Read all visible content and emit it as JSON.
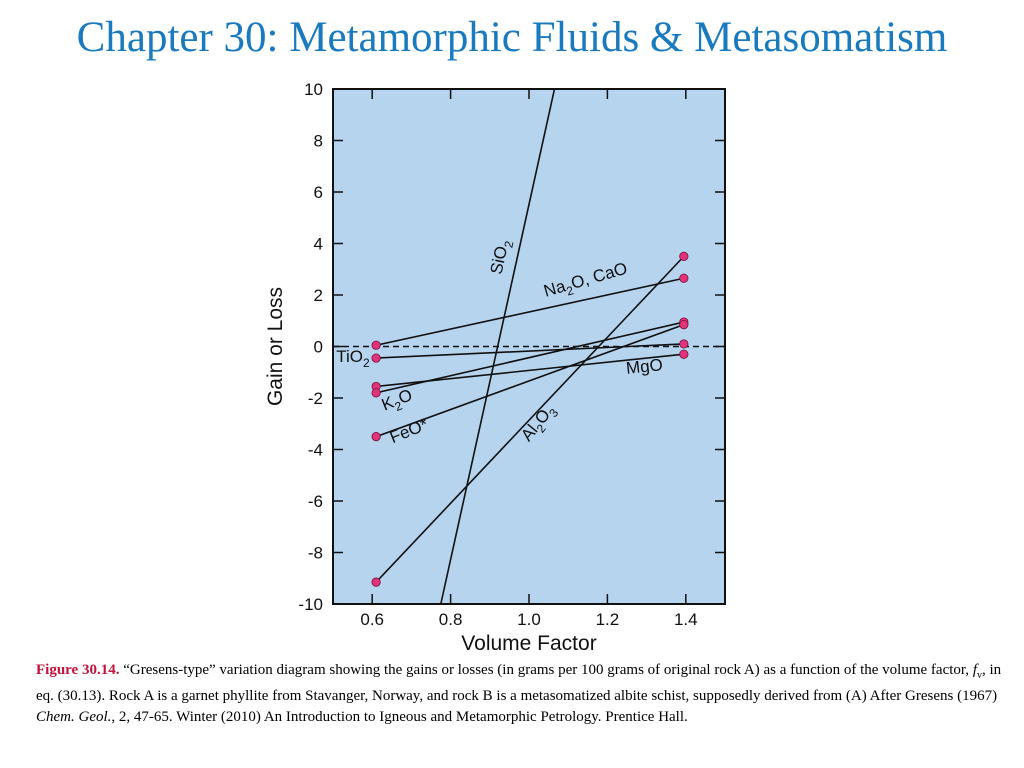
{
  "slide": {
    "title": "Chapter 30: Metamorphic Fluids & Metasomatism"
  },
  "colors": {
    "plot_background": "#b6d4ee",
    "point_fill": "#e0337a",
    "line": "#111111",
    "title": "#1a7abf",
    "figure_label": "#c0143c"
  },
  "chart_data": {
    "type": "line",
    "xlabel": "Volume Factor",
    "ylabel": "Gain or Loss",
    "xlim": [
      0.5,
      1.5
    ],
    "ylim": [
      -10,
      10
    ],
    "x_ticks": [
      0.6,
      0.8,
      1.0,
      1.2,
      1.4
    ],
    "x_tick_labels": [
      "0.6",
      "0.8",
      "1.0",
      "1.2",
      "1.4"
    ],
    "y_ticks": [
      10,
      8,
      6,
      4,
      2,
      0,
      -2,
      -4,
      -6,
      -8,
      -10
    ],
    "y_tick_labels": [
      "10",
      "8",
      "6",
      "4",
      "2",
      "0",
      "-2",
      "-4",
      "-6",
      "-8",
      "-10"
    ],
    "reference_line": {
      "y": 0,
      "style": "dashed"
    },
    "series": [
      {
        "name": "SiO2",
        "label_parts": [
          [
            "Si",
            ""
          ],
          [
            "O",
            ""
          ],
          [
            "2",
            "sub"
          ]
        ],
        "x": [
          0.775,
          1.065
        ],
        "y": [
          -10,
          10
        ],
        "markers": false
      },
      {
        "name": "Na2O, CaO",
        "label_parts": [
          [
            "Na",
            ""
          ],
          [
            "2",
            "sub"
          ],
          [
            "O, CaO",
            ""
          ]
        ],
        "x": [
          0.61,
          1.395
        ],
        "y": [
          0.05,
          2.65
        ],
        "markers": true
      },
      {
        "name": "TiO2",
        "label_parts": [
          [
            "TiO",
            ""
          ],
          [
            "2",
            "sub"
          ]
        ],
        "x": [
          0.61,
          1.395
        ],
        "y": [
          -0.45,
          0.1
        ],
        "markers": true
      },
      {
        "name": "MgO",
        "label_parts": [
          [
            "MgO",
            ""
          ]
        ],
        "x": [
          0.61,
          1.395
        ],
        "y": [
          -1.55,
          -0.3
        ],
        "markers": true
      },
      {
        "name": "K2O",
        "label_parts": [
          [
            "K",
            ""
          ],
          [
            "2",
            "sub"
          ],
          [
            "O",
            ""
          ]
        ],
        "x": [
          0.61,
          1.395
        ],
        "y": [
          -1.8,
          0.95
        ],
        "markers": true
      },
      {
        "name": "FeO*",
        "label_parts": [
          [
            "FeO*",
            ""
          ]
        ],
        "x": [
          0.61,
          1.395
        ],
        "y": [
          -3.5,
          0.85
        ],
        "markers": true
      },
      {
        "name": "Al2O3",
        "label_parts": [
          [
            "Al",
            ""
          ],
          [
            "2",
            "sub"
          ],
          [
            "O",
            ""
          ],
          [
            "3",
            "sub"
          ]
        ],
        "x": [
          0.61,
          1.395
        ],
        "y": [
          -9.15,
          3.5
        ],
        "markers": true
      }
    ]
  },
  "caption": {
    "figure_label": "Figure 30.14.",
    "part1": " “Gresens-type” variation diagram showing the gains or losses (in grams per 100 grams of original rock A) as a function of the volume factor, ",
    "fv_f": "f",
    "fv_sub": "v",
    "part2": ", in eq. (30.13). Rock A is a garnet phyllite from Stavanger, Norway, and rock B is a metasomatized albite schist, supposedly derived from (A) After Gresens (1967) ",
    "journal": "Chem. Geol.",
    "part3": ", 2, 47-65. Winter (2010) An Introduction to Igneous and Metamorphic Petrology. Prentice Hall."
  }
}
